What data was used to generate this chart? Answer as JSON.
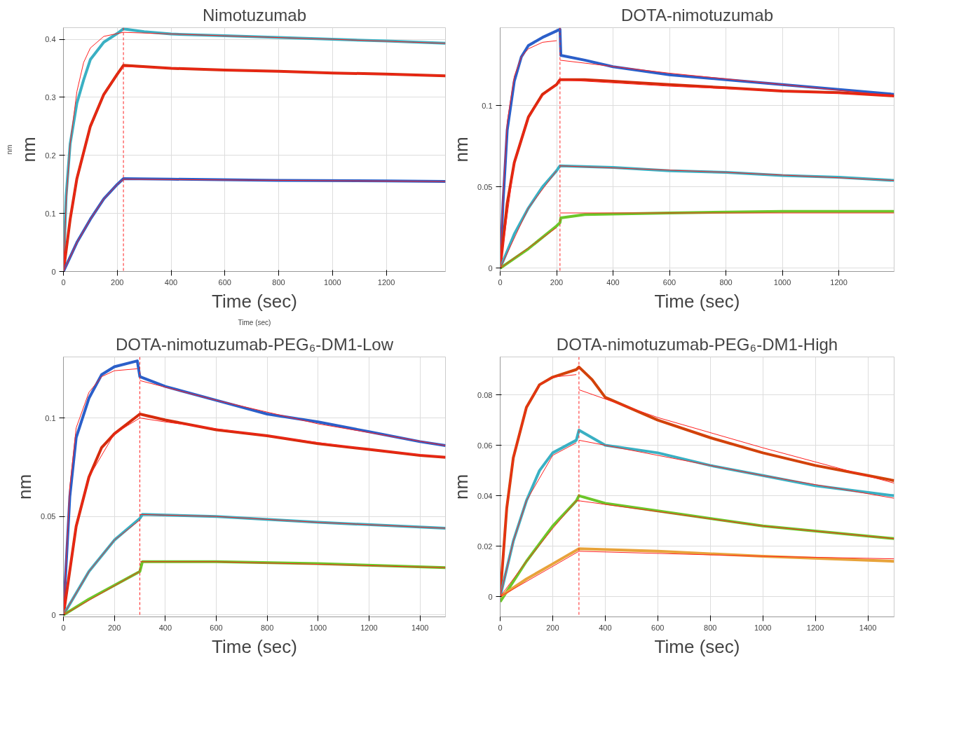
{
  "chart_data": [
    {
      "type": "line",
      "title": "Nimotuzumab",
      "xlabel": "Time (sec)",
      "ylabel": "nm",
      "annotations": [
        "nm",
        "Time (sec)"
      ],
      "xlim": [
        0,
        1420
      ],
      "ylim": [
        0,
        0.42
      ],
      "xticks": [
        0,
        200,
        400,
        600,
        800,
        1000,
        1200
      ],
      "yticks": [
        0,
        0.1,
        0.2,
        0.3,
        0.4
      ],
      "grid": true,
      "ref_lines": [
        {
          "axis": "x",
          "value": 223,
          "color": "#ff2020",
          "line_style": "dashed"
        }
      ],
      "series": [
        {
          "color": "#3ab0c3",
          "x": [
            0,
            10,
            25,
            50,
            75,
            100,
            150,
            200,
            223,
            300,
            400,
            600,
            800,
            1000,
            1200,
            1420
          ],
          "values": [
            0,
            0.13,
            0.22,
            0.29,
            0.33,
            0.365,
            0.395,
            0.41,
            0.418,
            0.413,
            0.409,
            0.406,
            0.403,
            0.4,
            0.397,
            0.393
          ]
        },
        {
          "color": "#d62b0c",
          "x": [
            0,
            25,
            50,
            100,
            150,
            200,
            223,
            400,
            600,
            800,
            1000,
            1200,
            1420
          ],
          "values": [
            0,
            0.09,
            0.16,
            0.25,
            0.305,
            0.34,
            0.355,
            0.35,
            0.347,
            0.345,
            0.342,
            0.34,
            0.337
          ]
        },
        {
          "color": "#2b5fc9",
          "x": [
            0,
            50,
            100,
            150,
            200,
            223,
            400,
            800,
            1200,
            1420
          ],
          "values": [
            0,
            0.05,
            0.09,
            0.125,
            0.15,
            0.16,
            0.159,
            0.157,
            0.156,
            0.155
          ]
        },
        {
          "color": "#ff2020",
          "x": [
            0,
            10,
            25,
            50,
            75,
            100,
            150,
            223,
            600,
            1000,
            1420
          ],
          "values": [
            0,
            0.12,
            0.22,
            0.31,
            0.36,
            0.385,
            0.405,
            0.412,
            0.406,
            0.4,
            0.393
          ]
        },
        {
          "color": "#ff2020",
          "x": [
            0,
            25,
            50,
            100,
            150,
            200,
            223,
            600,
            1000,
            1420
          ],
          "values": [
            0,
            0.09,
            0.16,
            0.25,
            0.305,
            0.34,
            0.353,
            0.347,
            0.342,
            0.337
          ]
        },
        {
          "color": "#ff2020",
          "x": [
            0,
            50,
            100,
            150,
            200,
            223,
            800,
            1420
          ],
          "values": [
            0,
            0.05,
            0.09,
            0.125,
            0.15,
            0.159,
            0.157,
            0.155
          ]
        }
      ]
    },
    {
      "type": "line",
      "title": "DOTA-nimotuzumab",
      "xlabel": "Time (sec)",
      "ylabel": "nm",
      "xlim": [
        0,
        1396
      ],
      "ylim": [
        -0.002,
        0.148
      ],
      "xticks": [
        0,
        200,
        400,
        600,
        800,
        1000,
        1200
      ],
      "yticks": [
        0,
        0.05,
        0.1
      ],
      "grid": true,
      "ref_lines": [
        {
          "axis": "x",
          "value": 212,
          "color": "#ff2020",
          "line_style": "dashed"
        }
      ],
      "series": [
        {
          "color": "#2b5fc9",
          "x": [
            0,
            10,
            25,
            50,
            75,
            100,
            150,
            200,
            212,
            215,
            300,
            400,
            600,
            800,
            1000,
            1200,
            1396
          ],
          "values": [
            0,
            0.04,
            0.085,
            0.115,
            0.13,
            0.137,
            0.142,
            0.146,
            0.147,
            0.131,
            0.128,
            0.124,
            0.119,
            0.116,
            0.113,
            0.11,
            0.107
          ]
        },
        {
          "color": "#d62b0c",
          "x": [
            0,
            25,
            50,
            100,
            150,
            200,
            212,
            300,
            400,
            600,
            800,
            1000,
            1200,
            1396
          ],
          "values": [
            0,
            0.04,
            0.065,
            0.093,
            0.107,
            0.113,
            0.116,
            0.116,
            0.115,
            0.113,
            0.111,
            0.109,
            0.108,
            0.106
          ]
        },
        {
          "color": "#3ab0c3",
          "x": [
            0,
            50,
            100,
            150,
            200,
            212,
            400,
            600,
            800,
            1000,
            1200,
            1396
          ],
          "values": [
            0,
            0.021,
            0.037,
            0.05,
            0.06,
            0.063,
            0.062,
            0.06,
            0.059,
            0.057,
            0.056,
            0.054
          ]
        },
        {
          "color": "#6cc62a",
          "x": [
            0,
            100,
            200,
            212,
            215,
            300,
            600,
            1000,
            1396
          ],
          "values": [
            0,
            0.012,
            0.026,
            0.028,
            0.031,
            0.033,
            0.034,
            0.035,
            0.035
          ]
        },
        {
          "color": "#ff2020",
          "x": [
            0,
            10,
            25,
            50,
            75,
            100,
            150,
            200,
            206,
            212,
            600,
            1000,
            1396
          ],
          "values": [
            0,
            0.045,
            0.09,
            0.118,
            0.13,
            0.135,
            0.139,
            0.14,
            null,
            0.128,
            0.12,
            0.113,
            0.106
          ]
        },
        {
          "color": "#ff2020",
          "x": [
            0,
            50,
            100,
            150,
            200,
            212,
            600,
            1000,
            1396
          ],
          "values": [
            0,
            0.065,
            0.093,
            0.106,
            0.113,
            0.116,
            0.112,
            0.109,
            0.106
          ]
        },
        {
          "color": "#ff2020",
          "x": [
            0,
            100,
            200,
            206,
            212,
            800,
            1396
          ],
          "values": [
            0,
            0.037,
            0.06,
            null,
            0.063,
            0.059,
            0.054
          ]
        },
        {
          "color": "#ff2020",
          "x": [
            0,
            200,
            206,
            212,
            1396
          ],
          "values": [
            0,
            0.025,
            null,
            0.034,
            0.034
          ]
        }
      ]
    },
    {
      "type": "line",
      "title": "DOTA-nimotuzumab-PEG₆-DM1-Low",
      "xlabel": "Time (sec)",
      "ylabel": "nm",
      "xlim": [
        0,
        1500
      ],
      "ylim": [
        -0.001,
        0.131
      ],
      "xticks": [
        0,
        200,
        400,
        600,
        800,
        1000,
        1200,
        1400
      ],
      "yticks": [
        0,
        0.05,
        0.1
      ],
      "grid": true,
      "ref_lines": [
        {
          "axis": "x",
          "value": 300,
          "color": "#ff2020",
          "line_style": "dashed"
        }
      ],
      "series": [
        {
          "color": "#2b5fc9",
          "x": [
            0,
            25,
            50,
            100,
            150,
            200,
            290,
            300,
            400,
            600,
            800,
            1000,
            1200,
            1400,
            1500
          ],
          "values": [
            0,
            0.06,
            0.09,
            0.11,
            0.122,
            0.126,
            0.129,
            0.121,
            0.116,
            0.109,
            0.102,
            0.098,
            0.093,
            0.088,
            0.086
          ]
        },
        {
          "color": "#d62b0c",
          "x": [
            0,
            50,
            100,
            150,
            200,
            250,
            300,
            400,
            600,
            800,
            1000,
            1200,
            1400,
            1500
          ],
          "values": [
            0,
            0.045,
            0.07,
            0.085,
            0.092,
            0.097,
            0.102,
            0.099,
            0.094,
            0.091,
            0.087,
            0.084,
            0.081,
            0.08
          ]
        },
        {
          "color": "#3ab0c3",
          "x": [
            0,
            100,
            200,
            300,
            310,
            600,
            1000,
            1500
          ],
          "values": [
            0,
            0.022,
            0.038,
            0.049,
            0.051,
            0.05,
            0.047,
            0.044
          ]
        },
        {
          "color": "#6cc62a",
          "x": [
            0,
            100,
            200,
            300,
            310,
            600,
            1000,
            1500
          ],
          "values": [
            0,
            0.008,
            0.015,
            0.022,
            0.027,
            0.027,
            0.026,
            0.024
          ]
        },
        {
          "color": "#ff2020",
          "x": [
            0,
            25,
            50,
            100,
            150,
            200,
            290,
            295,
            300,
            600,
            1000,
            1500
          ],
          "values": [
            0,
            0.065,
            0.095,
            0.113,
            0.121,
            0.124,
            0.125,
            null,
            0.119,
            0.109,
            0.097,
            0.086
          ]
        },
        {
          "color": "#ff2020",
          "x": [
            0,
            50,
            100,
            200,
            300,
            400,
            800,
            1200,
            1500
          ],
          "values": [
            0,
            0.045,
            0.07,
            0.092,
            0.1,
            0.098,
            0.091,
            0.084,
            0.08
          ]
        },
        {
          "color": "#ff2020",
          "x": [
            0,
            100,
            200,
            298,
            299,
            301,
            600,
            1000,
            1500
          ],
          "values": [
            0,
            0.022,
            0.038,
            0.048,
            null,
            0.051,
            0.05,
            0.047,
            0.044
          ]
        },
        {
          "color": "#ff2020",
          "x": [
            0,
            298,
            299,
            301,
            600,
            1500
          ],
          "values": [
            0,
            0.022,
            null,
            0.027,
            0.027,
            0.024
          ]
        }
      ]
    },
    {
      "type": "line",
      "title": "DOTA-nimotuzumab-PEG₆-DM1-High",
      "xlabel": "Time (sec)",
      "ylabel": "nm",
      "xlim": [
        0,
        1500
      ],
      "ylim": [
        -0.008,
        0.095
      ],
      "xticks": [
        0,
        200,
        400,
        600,
        800,
        1000,
        1200,
        1400
      ],
      "yticks": [
        0,
        0.02,
        0.04,
        0.06,
        0.08
      ],
      "grid": true,
      "ref_lines": [
        {
          "axis": "x",
          "value": 300,
          "color": "#ff2020",
          "line_style": "dashed"
        }
      ],
      "series": [
        {
          "color": "#d2420a",
          "x": [
            0,
            25,
            50,
            100,
            150,
            200,
            290,
            300,
            350,
            400,
            600,
            800,
            1000,
            1200,
            1400,
            1500
          ],
          "values": [
            0,
            0.035,
            0.055,
            0.075,
            0.084,
            0.087,
            0.09,
            0.091,
            0.086,
            0.079,
            0.07,
            0.063,
            0.057,
            0.052,
            0.048,
            0.046
          ]
        },
        {
          "color": "#3ab0c3",
          "x": [
            0,
            50,
            100,
            150,
            200,
            290,
            300,
            400,
            600,
            800,
            1000,
            1200,
            1500
          ],
          "values": [
            0,
            0.022,
            0.038,
            0.05,
            0.057,
            0.062,
            0.066,
            0.06,
            0.057,
            0.052,
            0.048,
            0.044,
            0.04
          ]
        },
        {
          "color": "#6cc62a",
          "x": [
            0,
            100,
            200,
            290,
            300,
            400,
            600,
            1000,
            1500
          ],
          "values": [
            -0.002,
            0.014,
            0.028,
            0.038,
            0.04,
            0.037,
            0.034,
            0.028,
            0.023
          ]
        },
        {
          "color": "#e8a33a",
          "x": [
            0,
            100,
            200,
            300,
            600,
            1000,
            1500
          ],
          "values": [
            0,
            0.007,
            0.013,
            0.019,
            0.018,
            0.016,
            0.014
          ]
        },
        {
          "color": "#ff2020",
          "x": [
            0,
            25,
            50,
            100,
            150,
            200,
            290,
            295,
            300,
            600,
            1000,
            1500
          ],
          "values": [
            0,
            0.035,
            0.055,
            0.075,
            0.084,
            0.087,
            0.088,
            null,
            0.082,
            0.071,
            0.059,
            0.045
          ]
        },
        {
          "color": "#ff2020",
          "x": [
            0,
            50,
            100,
            200,
            290,
            295,
            300,
            600,
            1000,
            1500
          ],
          "values": [
            0,
            0.022,
            0.038,
            0.056,
            0.061,
            null,
            0.062,
            0.056,
            0.048,
            0.039
          ]
        },
        {
          "color": "#ff2020",
          "x": [
            0,
            100,
            200,
            290,
            300,
            1000,
            1500
          ],
          "values": [
            0,
            0.014,
            0.027,
            0.038,
            0.038,
            0.028,
            0.023
          ]
        },
        {
          "color": "#ff2020",
          "x": [
            0,
            300,
            1000,
            1500
          ],
          "values": [
            0,
            0.018,
            0.016,
            0.015
          ]
        }
      ]
    }
  ]
}
